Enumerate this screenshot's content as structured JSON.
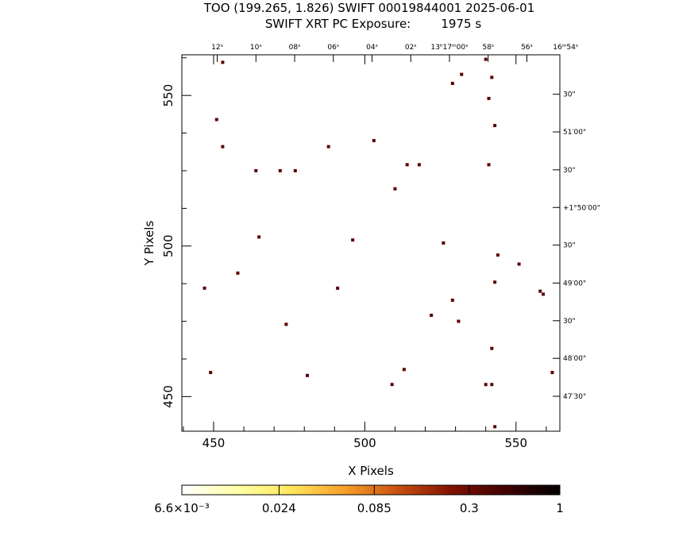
{
  "chart_data": {
    "type": "scatter",
    "title": "TOO (199.265, 1.826) SWIFT 00019844001 2025-06-01",
    "subtitle": "SWIFT XRT PC Exposure:        1975 s",
    "xlabel": "X Pixels",
    "ylabel": "Y Pixels",
    "xlim": [
      439.5,
      564.5
    ],
    "ylim": [
      438.5,
      563.5
    ],
    "x_ticks": [
      450,
      500,
      550
    ],
    "y_ticks": [
      450,
      500,
      550
    ],
    "x_minor_step": 10,
    "y_minor_step": 12.5,
    "top_axis_labels": [
      {
        "x": 451.2,
        "text": "12ˢ"
      },
      {
        "x": 464.0,
        "text": "10ˢ"
      },
      {
        "x": 476.8,
        "text": "08ˢ"
      },
      {
        "x": 489.6,
        "text": "06ˢ"
      },
      {
        "x": 502.4,
        "text": "04ˢ"
      },
      {
        "x": 515.2,
        "text": "02ˢ"
      },
      {
        "x": 528.0,
        "text": "13ʰ17ᵐ00ˢ"
      },
      {
        "x": 540.8,
        "text": "58ˢ"
      },
      {
        "x": 553.6,
        "text": "56ˢ"
      },
      {
        "x": 566.4,
        "text": "16ᵐ54ˢ"
      }
    ],
    "right_axis_labels": [
      {
        "y": 550.4,
        "text": "30\""
      },
      {
        "y": 537.9,
        "text": "51′00\""
      },
      {
        "y": 525.3,
        "text": "30\""
      },
      {
        "y": 512.8,
        "text": "+1°50′00\""
      },
      {
        "y": 500.3,
        "text": "30\""
      },
      {
        "y": 487.7,
        "text": "49′00\""
      },
      {
        "y": 475.2,
        "text": "30\""
      },
      {
        "y": 462.7,
        "text": "48′00\""
      },
      {
        "y": 450.1,
        "text": "47′30\""
      }
    ],
    "points": [
      {
        "x": 453,
        "y": 561
      },
      {
        "x": 540,
        "y": 562
      },
      {
        "x": 532,
        "y": 557
      },
      {
        "x": 542,
        "y": 556
      },
      {
        "x": 529,
        "y": 554
      },
      {
        "x": 541,
        "y": 549
      },
      {
        "x": 451,
        "y": 542
      },
      {
        "x": 543,
        "y": 540
      },
      {
        "x": 503,
        "y": 535
      },
      {
        "x": 453,
        "y": 533
      },
      {
        "x": 488,
        "y": 533
      },
      {
        "x": 514,
        "y": 527
      },
      {
        "x": 518,
        "y": 527
      },
      {
        "x": 541,
        "y": 527
      },
      {
        "x": 464,
        "y": 525
      },
      {
        "x": 472,
        "y": 525
      },
      {
        "x": 477,
        "y": 525
      },
      {
        "x": 510,
        "y": 519
      },
      {
        "x": 465,
        "y": 503
      },
      {
        "x": 496,
        "y": 502
      },
      {
        "x": 526,
        "y": 501
      },
      {
        "x": 544,
        "y": 497
      },
      {
        "x": 551,
        "y": 494
      },
      {
        "x": 458,
        "y": 491
      },
      {
        "x": 543,
        "y": 488
      },
      {
        "x": 447,
        "y": 486
      },
      {
        "x": 491,
        "y": 486
      },
      {
        "x": 558,
        "y": 485
      },
      {
        "x": 559,
        "y": 484
      },
      {
        "x": 529,
        "y": 482
      },
      {
        "x": 522,
        "y": 477
      },
      {
        "x": 531,
        "y": 475
      },
      {
        "x": 474,
        "y": 474
      },
      {
        "x": 542,
        "y": 466
      },
      {
        "x": 513,
        "y": 459
      },
      {
        "x": 449,
        "y": 458
      },
      {
        "x": 562,
        "y": 458
      },
      {
        "x": 481,
        "y": 457
      },
      {
        "x": 509,
        "y": 454
      },
      {
        "x": 540,
        "y": 454
      },
      {
        "x": 542,
        "y": 454
      },
      {
        "x": 543,
        "y": 440
      }
    ],
    "point_color": "#5a0000",
    "colorbar": {
      "tick_labels": [
        "6.6×10⁻³",
        "0.024",
        "0.085",
        "0.3",
        "1"
      ],
      "tick_values": [
        0.0066,
        0.024,
        0.085,
        0.3,
        1
      ],
      "scale": "log",
      "colors": [
        "#ffffff",
        "#ffffa8",
        "#ffe860",
        "#f8a028",
        "#c85010",
        "#801000",
        "#400000",
        "#000000"
      ]
    }
  }
}
